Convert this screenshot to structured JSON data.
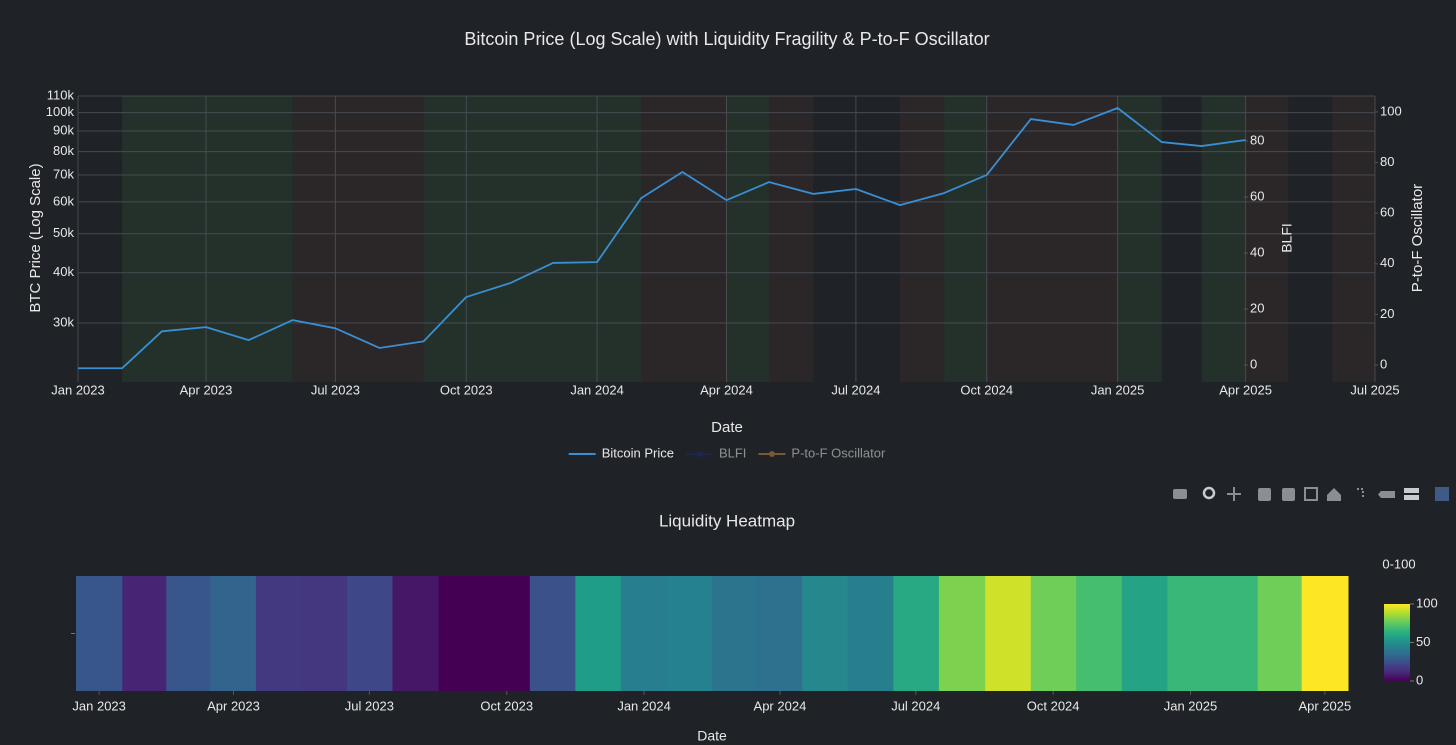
{
  "chart_data": [
    {
      "type": "line",
      "title": "Bitcoin Price (Log Scale) with Liquidity Fragility & P-to-F Oscillator",
      "xlabel": "Date",
      "ylabel": "BTC Price (Log Scale)",
      "y2label": "BLFI",
      "y3label": "P-to-F Oscillator",
      "x": [
        "2023-01",
        "2023-02",
        "2023-03",
        "2023-04",
        "2023-05",
        "2023-06",
        "2023-07",
        "2023-08",
        "2023-09",
        "2023-10",
        "2023-11",
        "2023-12",
        "2024-01",
        "2024-02",
        "2024-03",
        "2024-04",
        "2024-05",
        "2024-06",
        "2024-07",
        "2024-08",
        "2024-09",
        "2024-10",
        "2024-11",
        "2024-12",
        "2025-01",
        "2025-02",
        "2025-03",
        "2025-04"
      ],
      "series": [
        {
          "name": "Bitcoin Price",
          "color": "#3a8fd4",
          "mode": "lines",
          "values": [
            23150,
            23150,
            28600,
            29300,
            27200,
            30500,
            29100,
            26000,
            27000,
            34800,
            37700,
            42300,
            42500,
            61300,
            71200,
            60600,
            67200,
            62800,
            64600,
            58900,
            63100,
            70000,
            96400,
            93200,
            102700,
            84500,
            82600,
            85500
          ]
        },
        {
          "name": "BLFI",
          "color": "#1d2a6e",
          "mode": "lines+markers",
          "axis": "y2",
          "visible": "legendonly"
        },
        {
          "name": "P-to-F Oscillator",
          "color": "#c8843e",
          "mode": "lines+markers",
          "axis": "y3",
          "visible": "legendonly"
        }
      ],
      "xlim": [
        "2023-01",
        "2025-07"
      ],
      "xticks": [
        {
          "value": "2023-01",
          "label": "Jan 2023"
        },
        {
          "value": "2023-04",
          "label": "Apr 2023"
        },
        {
          "value": "2023-07",
          "label": "Jul 2023"
        },
        {
          "value": "2023-10",
          "label": "Oct 2023"
        },
        {
          "value": "2024-01",
          "label": "Jan 2024"
        },
        {
          "value": "2024-04",
          "label": "Apr 2024"
        },
        {
          "value": "2024-07",
          "label": "Jul 2024"
        },
        {
          "value": "2024-10",
          "label": "Oct 2024"
        },
        {
          "value": "2025-01",
          "label": "Jan 2025"
        },
        {
          "value": "2025-04",
          "label": "Apr 2025"
        },
        {
          "value": "2025-07",
          "label": "Jul 2025"
        }
      ],
      "y_scale": "log",
      "ylim": [
        21400,
        110000
      ],
      "yticks": [
        {
          "value": 30000,
          "label": "30k"
        },
        {
          "value": 40000,
          "label": "40k"
        },
        {
          "value": 50000,
          "label": "50k"
        },
        {
          "value": 60000,
          "label": "60k"
        },
        {
          "value": 70000,
          "label": "70k"
        },
        {
          "value": 80000,
          "label": "80k"
        },
        {
          "value": 90000,
          "label": "90k"
        },
        {
          "value": 100000,
          "label": "100k"
        },
        {
          "value": 110000,
          "label": "110k"
        }
      ],
      "y2lim": [
        -6.1,
        96.1
      ],
      "y2ticks": [
        0,
        20,
        40,
        60,
        80
      ],
      "y3lim": [
        -6.7,
        106.3
      ],
      "y3ticks": [
        0,
        20,
        40,
        60,
        80,
        100
      ],
      "grid": true,
      "legend": "bottom",
      "shading": [
        {
          "from": "2023-02",
          "to": "2023-06",
          "color": "#24302a"
        },
        {
          "from": "2023-06",
          "to": "2023-09",
          "color": "#2b2628"
        },
        {
          "from": "2023-09",
          "to": "2024-02",
          "color": "#24302a"
        },
        {
          "from": "2024-02",
          "to": "2024-04",
          "color": "#2b2628"
        },
        {
          "from": "2024-04",
          "to": "2024-05",
          "color": "#24302a"
        },
        {
          "from": "2024-05",
          "to": "2024-06",
          "color": "#2b2628"
        },
        {
          "from": "2024-08",
          "to": "2024-09",
          "color": "#2b2628"
        },
        {
          "from": "2024-09",
          "to": "2024-10",
          "color": "#24302a"
        },
        {
          "from": "2024-10",
          "to": "2025-01",
          "color": "#2b2628"
        },
        {
          "from": "2025-01",
          "to": "2025-02",
          "color": "#24302a"
        },
        {
          "from": "2025-03",
          "to": "2025-04",
          "color": "#24302a"
        },
        {
          "from": "2025-04",
          "to": "2025-05",
          "color": "#2b2628"
        },
        {
          "from": "2025-06",
          "to": "2025-07",
          "color": "#2b2628"
        }
      ]
    },
    {
      "type": "heatmap",
      "title": "Liquidity Heatmap",
      "xlabel": "Date",
      "x": [
        "2023-01",
        "2023-02",
        "2023-03",
        "2023-04",
        "2023-05",
        "2023-06",
        "2023-07",
        "2023-08",
        "2023-09",
        "2023-10",
        "2023-11",
        "2023-12",
        "2024-01",
        "2024-02",
        "2024-03",
        "2024-04",
        "2024-05",
        "2024-06",
        "2024-07",
        "2024-08",
        "2024-09",
        "2024-10",
        "2024-11",
        "2024-12",
        "2025-01",
        "2025-02",
        "2025-03",
        "2025-04"
      ],
      "values": [
        27,
        10,
        27,
        32,
        17,
        16,
        22,
        6,
        0,
        0,
        25,
        55,
        43,
        44,
        38,
        37,
        47,
        43,
        60,
        80,
        93,
        78,
        70,
        58,
        67,
        67,
        78,
        100
      ],
      "colorscale": "Viridis",
      "zlim": [
        0,
        100
      ],
      "colorbar_title": "0-100",
      "colorbar_ticks": [
        0,
        50,
        100
      ],
      "xticks": [
        {
          "value": "2023-01",
          "label": "Jan 2023"
        },
        {
          "value": "2023-04",
          "label": "Apr 2023"
        },
        {
          "value": "2023-07",
          "label": "Jul 2023"
        },
        {
          "value": "2023-10",
          "label": "Oct 2023"
        },
        {
          "value": "2024-01",
          "label": "Jan 2024"
        },
        {
          "value": "2024-04",
          "label": "Apr 2024"
        },
        {
          "value": "2024-07",
          "label": "Jul 2024"
        },
        {
          "value": "2024-10",
          "label": "Oct 2024"
        },
        {
          "value": "2025-01",
          "label": "Jan 2025"
        },
        {
          "value": "2025-04",
          "label": "Apr 2025"
        }
      ]
    }
  ]
}
